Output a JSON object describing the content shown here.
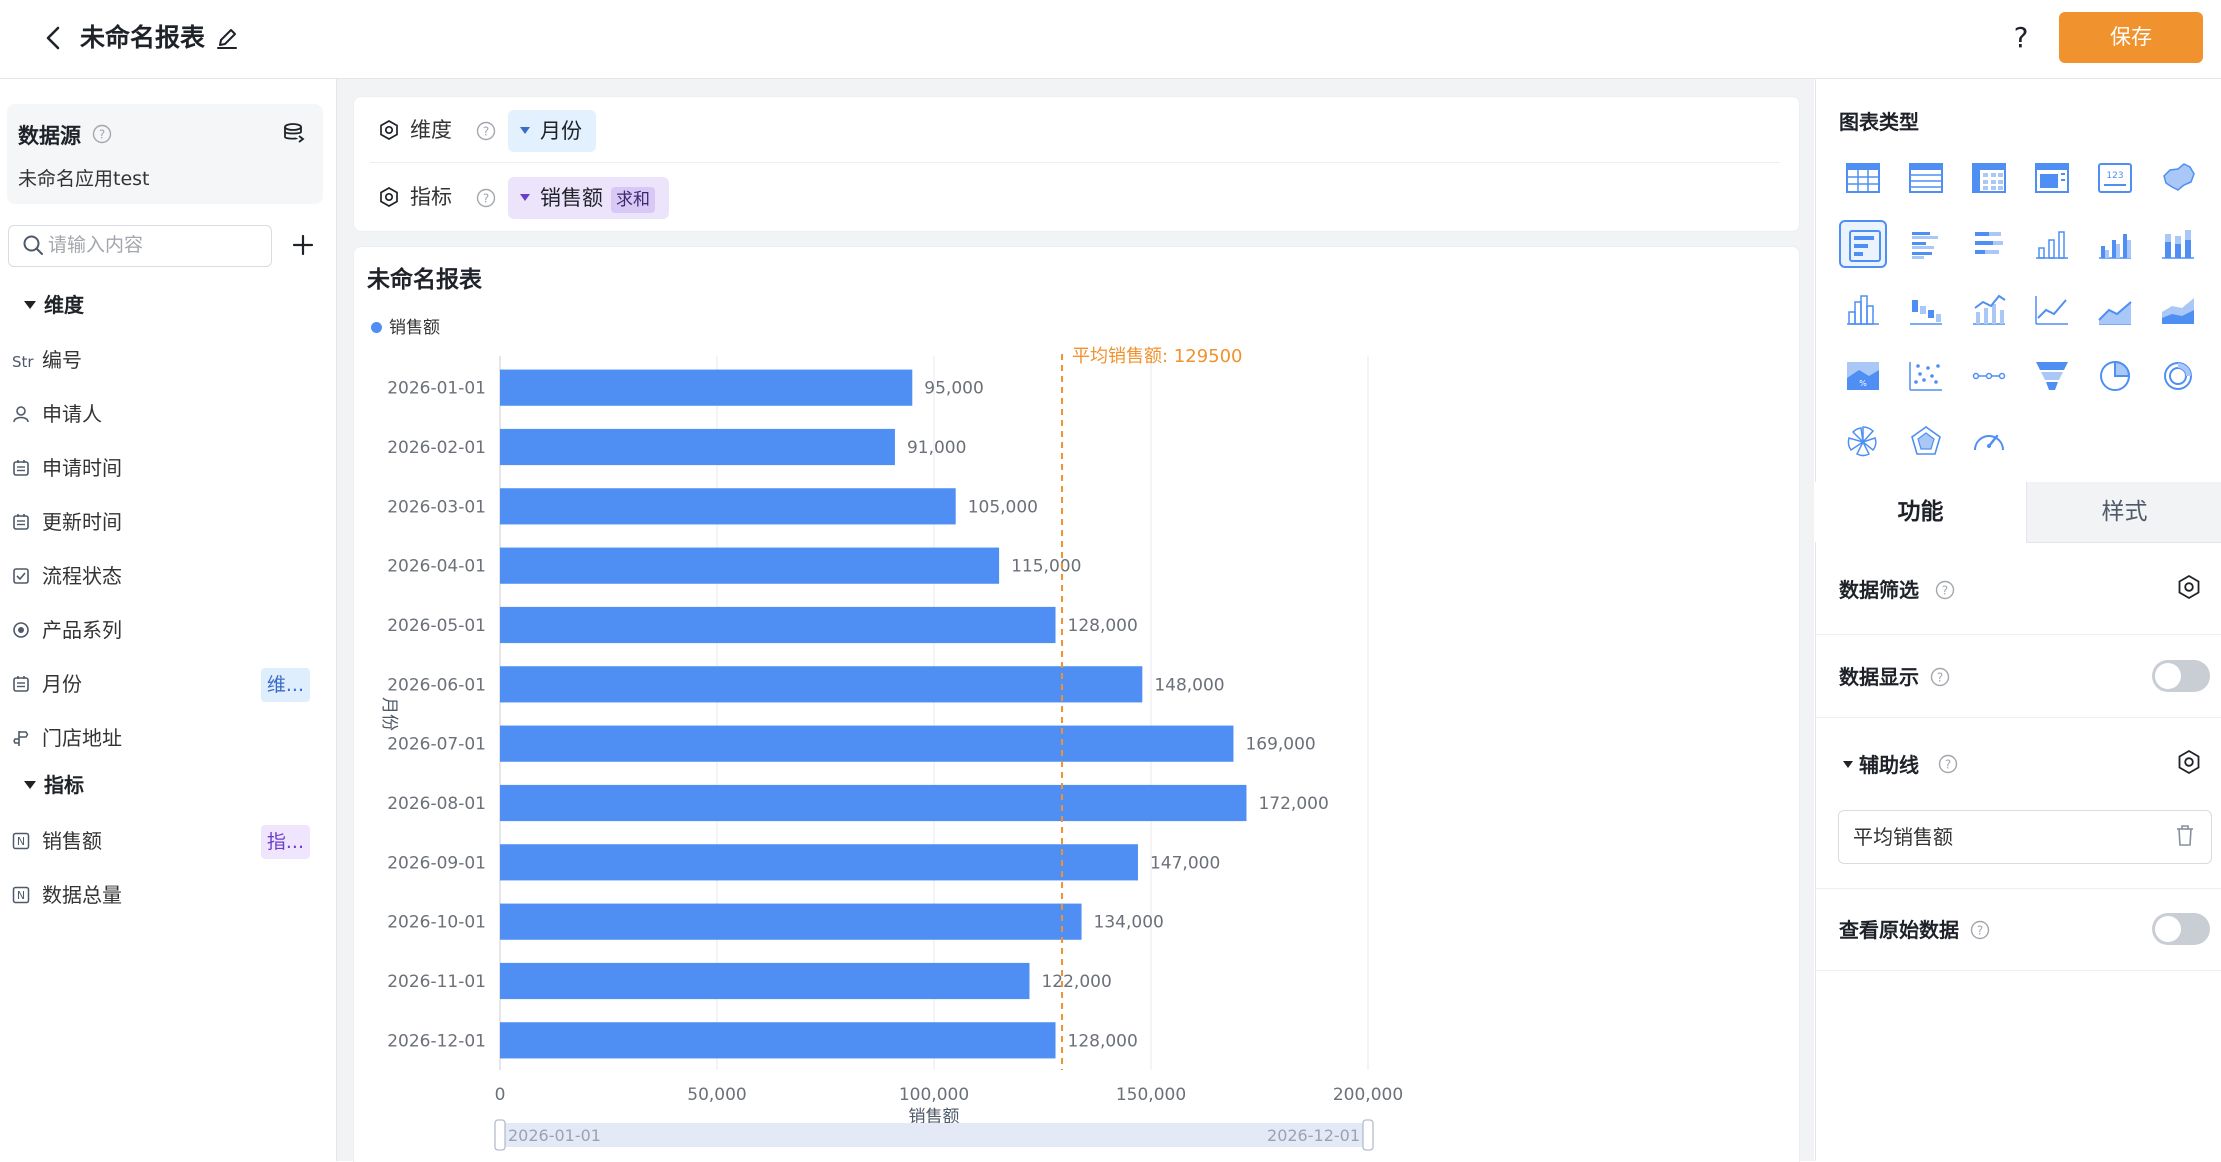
{
  "header": {
    "report_title": "未命名报表",
    "save_label": "保存",
    "help_label": "?"
  },
  "left_panel": {
    "datasource_label": "数据源",
    "datasource_name": "未命名应用test",
    "search_placeholder": "请输入内容",
    "dimension_group_label": "维度",
    "metric_group_label": "指标",
    "dimension_fields": [
      {
        "icon": "Str",
        "label": "编号",
        "tag": ""
      },
      {
        "icon": "person-icon",
        "label": "申请人",
        "tag": ""
      },
      {
        "icon": "calendar-icon",
        "label": "申请时间",
        "tag": ""
      },
      {
        "icon": "calendar-icon",
        "label": "更新时间",
        "tag": ""
      },
      {
        "icon": "checkbox-icon",
        "label": "流程状态",
        "tag": ""
      },
      {
        "icon": "radio-icon",
        "label": "产品系列",
        "tag": ""
      },
      {
        "icon": "calendar-icon",
        "label": "月份",
        "tag": "维..."
      },
      {
        "icon": "location-icon",
        "label": "门店地址",
        "tag": ""
      }
    ],
    "metric_fields": [
      {
        "icon": "N",
        "label": "销售额",
        "tag": "指..."
      },
      {
        "icon": "N",
        "label": "数据总量",
        "tag": ""
      }
    ]
  },
  "config": {
    "dimension_label": "维度",
    "dimension_chip": "月份",
    "metric_label": "指标",
    "metric_chip": "销售额",
    "metric_agg": "求和"
  },
  "chart_panel": {
    "title": "未命名报表",
    "legend_label": "销售额",
    "reference_label": "平均销售额: 129500",
    "slider_start": "2026-01-01",
    "slider_end": "2026-12-01"
  },
  "chart_data": {
    "type": "bar",
    "orientation": "horizontal",
    "title": "未命名报表",
    "xlabel": "销售额",
    "ylabel": "月份",
    "xlim": [
      0,
      200000
    ],
    "x_ticks": [
      0,
      50000,
      100000,
      150000,
      200000
    ],
    "x_tick_labels": [
      "0",
      "50,000",
      "100,000",
      "150,000",
      "200,000"
    ],
    "categories": [
      "2026-01-01",
      "2026-02-01",
      "2026-03-01",
      "2026-04-01",
      "2026-05-01",
      "2026-06-01",
      "2026-07-01",
      "2026-08-01",
      "2026-09-01",
      "2026-10-01",
      "2026-11-01",
      "2026-12-01"
    ],
    "series": [
      {
        "name": "销售额",
        "values": [
          95000,
          91000,
          105000,
          115000,
          128000,
          148000,
          169000,
          172000,
          147000,
          134000,
          122000,
          128000
        ],
        "labels": [
          "95,000",
          "91,000",
          "105,000",
          "115,000",
          "128,000",
          "148,000",
          "169,000",
          "172,000",
          "147,000",
          "134,000",
          "122,000",
          "128,000"
        ]
      }
    ],
    "reference_line": {
      "value": 129500,
      "label": "平均销售额: 129500"
    },
    "grid": true,
    "legend_position": "top-left",
    "colors": {
      "bar": "#4f8ff4",
      "reference": "#f0922e"
    }
  },
  "right_panel": {
    "chart_type_label": "图表类型",
    "chart_types": [
      "table-icon",
      "detail-table-icon",
      "pivot-table-icon",
      "cross-table-icon",
      "kpi-card-icon",
      "map-icon",
      "horizontal-bar-icon",
      "grouped-hbar-icon",
      "stacked-hbar-icon",
      "column-icon",
      "grouped-column-icon",
      "stacked-column-icon",
      "histogram-icon",
      "waterfall-icon",
      "combo-icon",
      "line-icon",
      "area-icon",
      "stacked-area-icon",
      "percent-area-icon",
      "scatter-icon",
      "dot-line-icon",
      "funnel-icon",
      "pie-icon",
      "donut-icon",
      "rose-icon",
      "radar-icon",
      "gauge-icon"
    ],
    "selected_chart_type": "horizontal-bar-icon",
    "tab_function": "功能",
    "tab_style": "样式",
    "data_filter_label": "数据筛选",
    "data_display_label": "数据显示",
    "reference_line_label": "辅助线",
    "reference_line_item": "平均销售额",
    "raw_data_label": "查看原始数据"
  }
}
